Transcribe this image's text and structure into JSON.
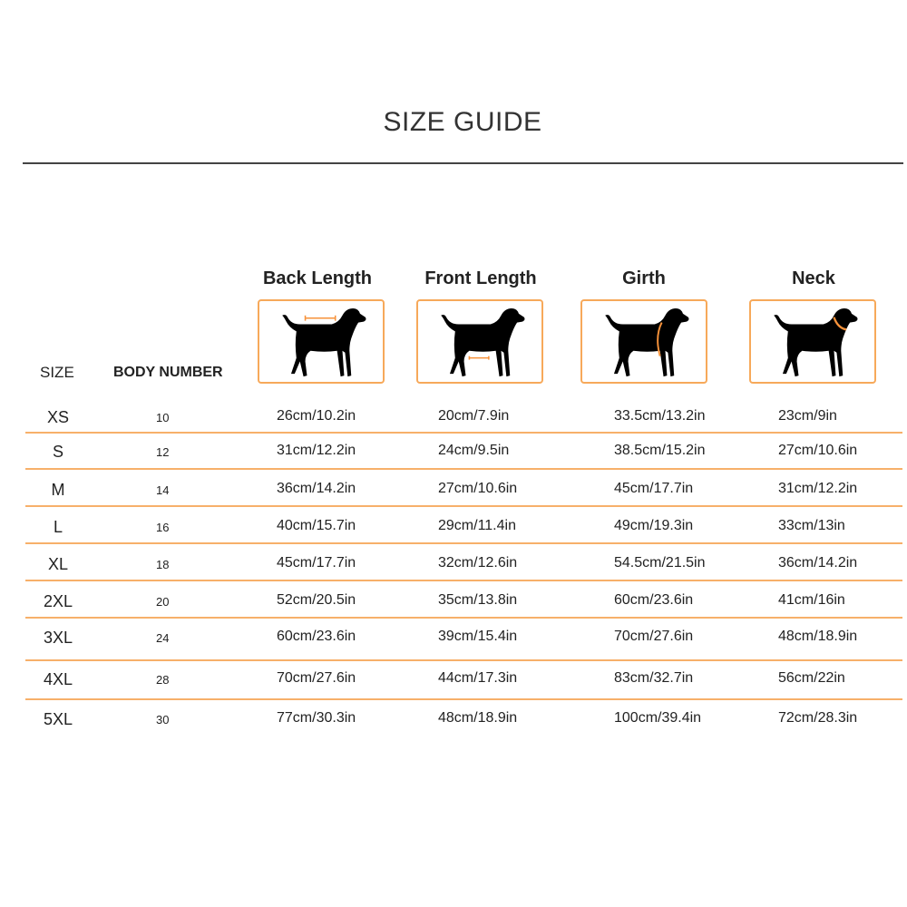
{
  "title": "SIZE GUIDE",
  "headers": {
    "size": "SIZE",
    "body_number": "BODY NUMBER",
    "back_length": "Back Length",
    "front_length": "Front Length",
    "girth": "Girth",
    "neck": "Neck"
  },
  "icons": [
    "dog-back-length-icon",
    "dog-front-length-icon",
    "dog-girth-icon",
    "dog-neck-icon"
  ],
  "colors": {
    "accent": "#f7a95a",
    "text": "#222222"
  },
  "rows": [
    {
      "size": "XS",
      "body_number": "10",
      "back": "26cm/10.2in",
      "front": "20cm/7.9in",
      "girth": "33.5cm/13.2in",
      "neck": "23cm/9in"
    },
    {
      "size": "S",
      "body_number": "12",
      "back": "31cm/12.2in",
      "front": "24cm/9.5in",
      "girth": "38.5cm/15.2in",
      "neck": "27cm/10.6in"
    },
    {
      "size": "M",
      "body_number": "14",
      "back": "36cm/14.2in",
      "front": "27cm/10.6in",
      "girth": "45cm/17.7in",
      "neck": "31cm/12.2in"
    },
    {
      "size": "L",
      "body_number": "16",
      "back": "40cm/15.7in",
      "front": "29cm/11.4in",
      "girth": "49cm/19.3in",
      "neck": "33cm/13in"
    },
    {
      "size": "XL",
      "body_number": "18",
      "back": "45cm/17.7in",
      "front": "32cm/12.6in",
      "girth": "54.5cm/21.5in",
      "neck": "36cm/14.2in"
    },
    {
      "size": "2XL",
      "body_number": "20",
      "back": "52cm/20.5in",
      "front": "35cm/13.8in",
      "girth": "60cm/23.6in",
      "neck": "41cm/16in"
    },
    {
      "size": "3XL",
      "body_number": "24",
      "back": "60cm/23.6in",
      "front": "39cm/15.4in",
      "girth": "70cm/27.6in",
      "neck": "48cm/18.9in"
    },
    {
      "size": "4XL",
      "body_number": "28",
      "back": "70cm/27.6in",
      "front": "44cm/17.3in",
      "girth": "83cm/32.7in",
      "neck": "56cm/22in"
    },
    {
      "size": "5XL",
      "body_number": "30",
      "back": "77cm/30.3in",
      "front": "48cm/18.9in",
      "girth": "100cm/39.4in",
      "neck": "72cm/28.3in"
    }
  ]
}
